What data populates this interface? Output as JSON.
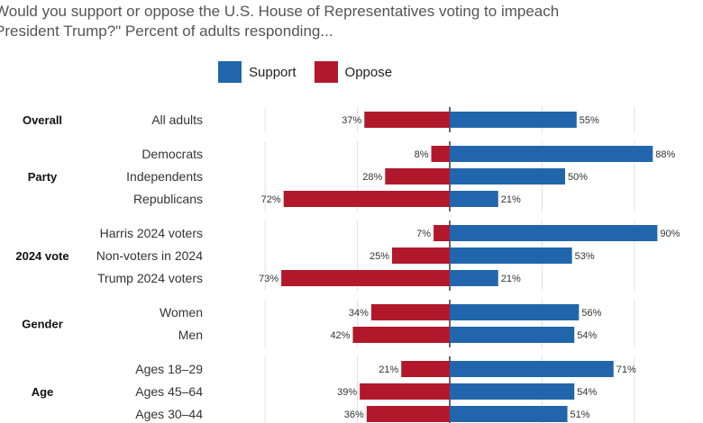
{
  "title_lines": [
    "Would you support or oppose the U.S. House of Representatives voting to impeach",
    "President Trump?\" Percent of adults responding..."
  ],
  "legend": [
    {
      "label": "Support",
      "color": "#2166ac"
    },
    {
      "label": "Oppose",
      "color": "#b2182b"
    }
  ],
  "chart_data": {
    "type": "bar",
    "orientation": "diverging-horizontal",
    "xlim": [
      -90,
      90
    ],
    "grid": true,
    "legend_position": "top-left",
    "value_suffix": "%",
    "groups": [
      {
        "label": "Overall",
        "rows": [
          {
            "label": "All adults",
            "support": 55,
            "oppose": 37
          }
        ]
      },
      {
        "label": "Party",
        "rows": [
          {
            "label": "Democrats",
            "support": 88,
            "oppose": 8
          },
          {
            "label": "Independents",
            "support": 50,
            "oppose": 28
          },
          {
            "label": "Republicans",
            "support": 21,
            "oppose": 72
          }
        ]
      },
      {
        "label": "2024 vote",
        "rows": [
          {
            "label": "Harris 2024 voters",
            "support": 90,
            "oppose": 7
          },
          {
            "label": "Non-voters in 2024",
            "support": 53,
            "oppose": 25
          },
          {
            "label": "Trump 2024 voters",
            "support": 21,
            "oppose": 73
          }
        ]
      },
      {
        "label": "Gender",
        "rows": [
          {
            "label": "Women",
            "support": 56,
            "oppose": 34
          },
          {
            "label": "Men",
            "support": 54,
            "oppose": 42
          }
        ]
      },
      {
        "label": "Age",
        "rows": [
          {
            "label": "Ages 18–29",
            "support": 71,
            "oppose": 21
          },
          {
            "label": "Ages 45–64",
            "support": 54,
            "oppose": 39
          },
          {
            "label": "Ages 30–44",
            "support": 51,
            "oppose": 36
          }
        ]
      }
    ]
  }
}
